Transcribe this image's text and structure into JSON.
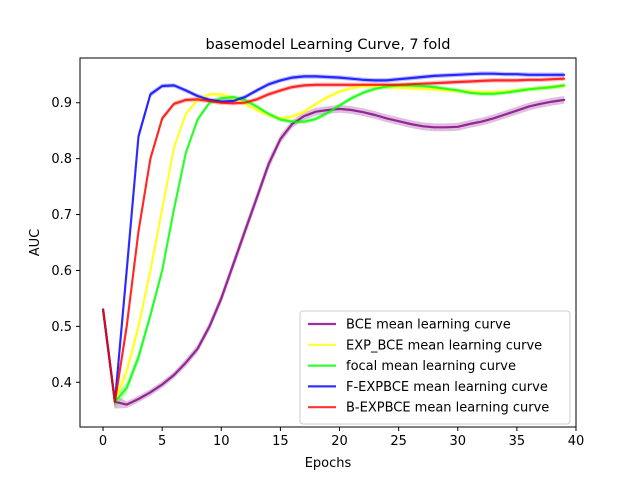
{
  "chart_data": {
    "type": "line",
    "title": "basemodel Learning Curve, 7 fold",
    "xlabel": "Epochs",
    "ylabel": "AUC",
    "xlim": [
      -1.95,
      40
    ],
    "ylim": [
      0.32,
      0.98
    ],
    "x_ticks": [
      0,
      5,
      10,
      15,
      20,
      25,
      30,
      35,
      40
    ],
    "y_ticks": [
      0.4,
      0.5,
      0.6,
      0.7,
      0.8,
      0.9
    ],
    "grid": false,
    "legend_position": "lower-right",
    "x": [
      0,
      1,
      2,
      3,
      4,
      5,
      6,
      7,
      8,
      9,
      10,
      11,
      12,
      13,
      14,
      15,
      16,
      17,
      18,
      19,
      20,
      21,
      22,
      23,
      24,
      25,
      26,
      27,
      28,
      29,
      30,
      31,
      32,
      33,
      34,
      35,
      36,
      37,
      38,
      39
    ],
    "series": [
      {
        "name": "BCE mean learning curve",
        "color": "#800080",
        "values": [
          0.53,
          0.365,
          0.36,
          0.37,
          0.382,
          0.396,
          0.413,
          0.435,
          0.46,
          0.5,
          0.55,
          0.61,
          0.67,
          0.73,
          0.79,
          0.835,
          0.862,
          0.876,
          0.884,
          0.887,
          0.889,
          0.887,
          0.883,
          0.878,
          0.872,
          0.867,
          0.862,
          0.858,
          0.856,
          0.856,
          0.857,
          0.862,
          0.866,
          0.872,
          0.879,
          0.886,
          0.893,
          0.898,
          0.902,
          0.905
        ],
        "band": [
          0.006,
          0.012,
          0.006,
          0.006,
          0.006,
          0.006,
          0.006,
          0.007,
          0.007,
          0.008,
          0.009,
          0.01,
          0.01,
          0.01,
          0.01,
          0.008,
          0.007,
          0.007,
          0.007,
          0.007,
          0.007,
          0.007,
          0.007,
          0.007,
          0.007,
          0.007,
          0.007,
          0.007,
          0.007,
          0.007,
          0.007,
          0.007,
          0.007,
          0.007,
          0.007,
          0.007,
          0.007,
          0.007,
          0.007,
          0.007
        ]
      },
      {
        "name": "EXP_BCE mean learning curve",
        "color": "#FFFF00",
        "values": [
          0.53,
          0.365,
          0.42,
          0.5,
          0.6,
          0.71,
          0.82,
          0.88,
          0.905,
          0.915,
          0.915,
          0.908,
          0.898,
          0.887,
          0.878,
          0.872,
          0.875,
          0.884,
          0.898,
          0.91,
          0.92,
          0.926,
          0.93,
          0.93,
          0.928,
          0.927,
          0.926,
          0.925,
          0.924,
          0.922,
          0.921,
          0.92,
          0.919,
          0.919,
          0.92,
          0.922,
          0.924,
          0.926,
          0.928,
          0.93
        ],
        "band": [
          0.006,
          0.012,
          0.01,
          0.01,
          0.008,
          0.006,
          0.005,
          0.004,
          0.004,
          0.004,
          0.004,
          0.004,
          0.004,
          0.004,
          0.004,
          0.004,
          0.004,
          0.004,
          0.004,
          0.004,
          0.004,
          0.004,
          0.004,
          0.004,
          0.004,
          0.004,
          0.004,
          0.004,
          0.004,
          0.004,
          0.004,
          0.004,
          0.004,
          0.004,
          0.004,
          0.004,
          0.004,
          0.004,
          0.004,
          0.004
        ]
      },
      {
        "name": "focal mean learning curve",
        "color": "#00FF00",
        "values": [
          0.53,
          0.365,
          0.39,
          0.445,
          0.52,
          0.6,
          0.71,
          0.81,
          0.87,
          0.9,
          0.908,
          0.91,
          0.905,
          0.893,
          0.88,
          0.87,
          0.866,
          0.866,
          0.871,
          0.882,
          0.895,
          0.908,
          0.918,
          0.925,
          0.929,
          0.931,
          0.931,
          0.93,
          0.928,
          0.925,
          0.922,
          0.918,
          0.916,
          0.916,
          0.918,
          0.921,
          0.924,
          0.926,
          0.928,
          0.931
        ],
        "band": [
          0.006,
          0.012,
          0.01,
          0.01,
          0.008,
          0.006,
          0.005,
          0.004,
          0.004,
          0.004,
          0.004,
          0.004,
          0.004,
          0.004,
          0.004,
          0.004,
          0.004,
          0.004,
          0.004,
          0.004,
          0.004,
          0.004,
          0.004,
          0.004,
          0.004,
          0.004,
          0.004,
          0.004,
          0.004,
          0.004,
          0.004,
          0.004,
          0.004,
          0.004,
          0.004,
          0.004,
          0.004,
          0.004,
          0.004,
          0.004
        ]
      },
      {
        "name": "F-EXPBCE mean learning curve",
        "color": "#0000FF",
        "values": [
          0.53,
          0.365,
          0.6,
          0.84,
          0.915,
          0.93,
          0.931,
          0.922,
          0.912,
          0.905,
          0.902,
          0.903,
          0.91,
          0.922,
          0.933,
          0.94,
          0.945,
          0.947,
          0.947,
          0.946,
          0.945,
          0.943,
          0.941,
          0.94,
          0.94,
          0.942,
          0.944,
          0.946,
          0.948,
          0.949,
          0.95,
          0.951,
          0.952,
          0.952,
          0.951,
          0.951,
          0.95,
          0.95,
          0.95,
          0.95
        ],
        "band": [
          0.006,
          0.012,
          0.01,
          0.008,
          0.005,
          0.004,
          0.004,
          0.004,
          0.004,
          0.004,
          0.004,
          0.004,
          0.004,
          0.004,
          0.004,
          0.004,
          0.004,
          0.004,
          0.004,
          0.004,
          0.004,
          0.004,
          0.004,
          0.004,
          0.004,
          0.004,
          0.004,
          0.004,
          0.004,
          0.004,
          0.004,
          0.004,
          0.004,
          0.004,
          0.004,
          0.004,
          0.004,
          0.004,
          0.004,
          0.004
        ]
      },
      {
        "name": "B-EXPBCE mean learning curve",
        "color": "#FF0000",
        "values": [
          0.53,
          0.365,
          0.5,
          0.67,
          0.8,
          0.872,
          0.898,
          0.905,
          0.906,
          0.903,
          0.9,
          0.899,
          0.9,
          0.906,
          0.915,
          0.922,
          0.928,
          0.931,
          0.932,
          0.932,
          0.932,
          0.932,
          0.932,
          0.932,
          0.932,
          0.932,
          0.933,
          0.934,
          0.935,
          0.936,
          0.937,
          0.938,
          0.939,
          0.94,
          0.94,
          0.94,
          0.941,
          0.941,
          0.942,
          0.943
        ],
        "band": [
          0.006,
          0.012,
          0.01,
          0.008,
          0.006,
          0.005,
          0.004,
          0.004,
          0.004,
          0.004,
          0.004,
          0.004,
          0.004,
          0.004,
          0.004,
          0.004,
          0.004,
          0.004,
          0.004,
          0.004,
          0.004,
          0.004,
          0.004,
          0.004,
          0.004,
          0.004,
          0.004,
          0.004,
          0.004,
          0.004,
          0.004,
          0.004,
          0.004,
          0.004,
          0.004,
          0.004,
          0.004,
          0.004,
          0.004,
          0.004
        ]
      }
    ]
  }
}
